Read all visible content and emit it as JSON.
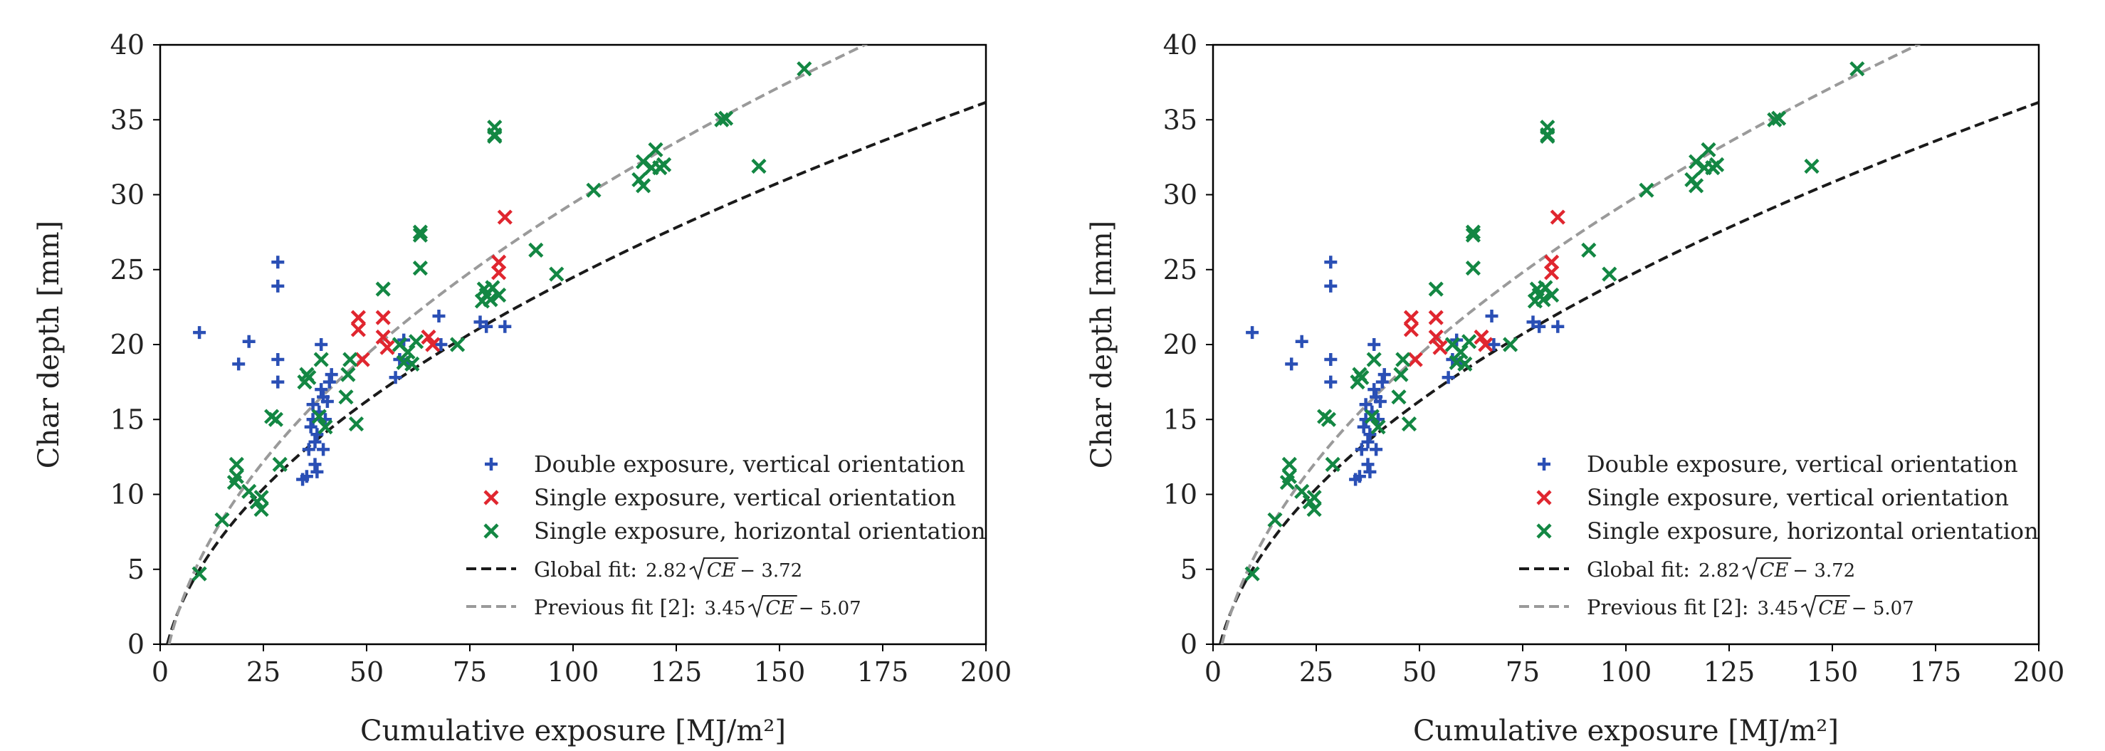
{
  "colors": {
    "double_vertical": "#2a4fb5",
    "single_vertical": "#e0262f",
    "single_horizontal": "#138743",
    "global_fit": "#1a1a1a",
    "previous_fit": "#9a9a9a",
    "axes": "#000000"
  },
  "chart_data": [
    {
      "type": "scatter",
      "xlabel": "Cumulative exposure [MJ/m²]",
      "ylabel": "Char depth [mm]",
      "xlim": [
        0,
        200
      ],
      "ylim": [
        0,
        40
      ],
      "xticks": [
        "0",
        "25",
        "50",
        "75",
        "100",
        "125",
        "150",
        "175",
        "200"
      ],
      "yticks": [
        "0",
        "5",
        "10",
        "15",
        "20",
        "25",
        "30",
        "35",
        "40"
      ],
      "legend_position": "lower-right",
      "grid": false,
      "series": [
        {
          "name": "Double exposure, vertical orientation",
          "marker": "plus",
          "color": "#2a4fb5",
          "points": [
            [
              9.5,
              20.8
            ],
            [
              19,
              18.7
            ],
            [
              21.5,
              20.2
            ],
            [
              28.5,
              25.5
            ],
            [
              28.5,
              23.9
            ],
            [
              28.5,
              19.0
            ],
            [
              28.5,
              17.5
            ],
            [
              34.5,
              11.0
            ],
            [
              35.5,
              11.2
            ],
            [
              36,
              13.0
            ],
            [
              36.5,
              14.5
            ],
            [
              37,
              15.0
            ],
            [
              37,
              16.0
            ],
            [
              37.5,
              12.0
            ],
            [
              37.5,
              13.5
            ],
            [
              38,
              14.0
            ],
            [
              38,
              11.5
            ],
            [
              38.5,
              15.5
            ],
            [
              39,
              17.0
            ],
            [
              39,
              20.0
            ],
            [
              39.5,
              16.5
            ],
            [
              39.5,
              13.0
            ],
            [
              40,
              15.0
            ],
            [
              40.5,
              16.2
            ],
            [
              41,
              17.5
            ],
            [
              41.5,
              18.0
            ],
            [
              57,
              17.8
            ],
            [
              58,
              19.0
            ],
            [
              59,
              20.3
            ],
            [
              60,
              18.8
            ],
            [
              67.5,
              21.9
            ],
            [
              68,
              20.0
            ],
            [
              77.5,
              21.5
            ],
            [
              79,
              21.2
            ],
            [
              83.5,
              21.2
            ]
          ]
        },
        {
          "name": "Single exposure, vertical orientation",
          "marker": "x",
          "color": "#e0262f",
          "points": [
            [
              48,
              21.8
            ],
            [
              48,
              21.0
            ],
            [
              54,
              21.8
            ],
            [
              54,
              20.5
            ],
            [
              55,
              19.8
            ],
            [
              65,
              20.5
            ],
            [
              66,
              20.0
            ],
            [
              82,
              25.5
            ],
            [
              82,
              24.8
            ],
            [
              83.5,
              28.5
            ],
            [
              49,
              19.0
            ]
          ]
        },
        {
          "name": "Single exposure, horizontal orientation",
          "marker": "x",
          "color": "#138743",
          "points": [
            [
              9.5,
              4.7
            ],
            [
              15,
              8.3
            ],
            [
              18,
              10.8
            ],
            [
              18.5,
              11.2
            ],
            [
              18.5,
              12.0
            ],
            [
              21.5,
              10.2
            ],
            [
              23.5,
              9.5
            ],
            [
              24.5,
              9.0
            ],
            [
              24.5,
              9.8
            ],
            [
              27,
              15.2
            ],
            [
              28,
              15.0
            ],
            [
              29,
              12.0
            ],
            [
              35,
              17.5
            ],
            [
              35.5,
              18.0
            ],
            [
              36,
              17.8
            ],
            [
              38.5,
              15.2
            ],
            [
              39,
              19.0
            ],
            [
              40,
              14.5
            ],
            [
              45,
              16.5
            ],
            [
              45.5,
              18.0
            ],
            [
              46,
              19.0
            ],
            [
              47.5,
              14.7
            ],
            [
              54,
              23.7
            ],
            [
              58,
              20.0
            ],
            [
              59,
              18.8
            ],
            [
              60,
              19.5
            ],
            [
              61,
              18.7
            ],
            [
              62,
              20.2
            ],
            [
              63,
              27.5
            ],
            [
              63,
              27.3
            ],
            [
              63,
              25.1
            ],
            [
              72,
              20.0
            ],
            [
              78,
              22.9
            ],
            [
              78.5,
              23.7
            ],
            [
              79,
              23.3
            ],
            [
              80,
              23.0
            ],
            [
              80.5,
              23.8
            ],
            [
              81,
              34.5
            ],
            [
              81,
              34.0
            ],
            [
              81,
              33.9
            ],
            [
              82,
              23.3
            ],
            [
              91,
              26.3
            ],
            [
              96,
              24.7
            ],
            [
              105,
              30.3
            ],
            [
              116,
              31.0
            ],
            [
              117,
              32.2
            ],
            [
              117,
              30.6
            ],
            [
              119,
              31.8
            ],
            [
              120,
              33.0
            ],
            [
              121,
              31.8
            ],
            [
              122,
              32.0
            ],
            [
              136,
              35.0
            ],
            [
              137,
              35.1
            ],
            [
              145,
              31.9
            ],
            [
              156,
              38.4
            ]
          ]
        }
      ],
      "fits": [
        {
          "name": "Global fit",
          "formula": "2.82√CE − 3.72",
          "a": 2.82,
          "b": 3.72,
          "color": "#1a1a1a"
        },
        {
          "name": "Previous fit [2]",
          "formula": "3.45√CE − 5.07",
          "a": 3.45,
          "b": 5.07,
          "color": "#9a9a9a"
        }
      ],
      "legend": {
        "entries": [
          "Double exposure, vertical orientation",
          "Single exposure, vertical orientation",
          "Single exposure, horizontal orientation",
          "Global fit:",
          "Previous fit [2]:"
        ],
        "formula_parts": [
          {
            "coef": "2.82",
            "var": "CE",
            "const": "− 3.72"
          },
          {
            "coef": "3.45",
            "var": "CE",
            "const": "− 5.07"
          }
        ]
      }
    },
    {
      "type": "scatter",
      "xlabel": "Cumulative exposure [MJ/m²]",
      "ylabel": "Char depth [mm]",
      "xlim": [
        0,
        200
      ],
      "ylim": [
        0,
        40
      ],
      "xticks": [
        "0",
        "25",
        "50",
        "75",
        "100",
        "125",
        "150",
        "175",
        "200"
      ],
      "yticks": [
        "0",
        "5",
        "10",
        "15",
        "20",
        "25",
        "30",
        "35",
        "40"
      ],
      "legend_position": "lower-right",
      "grid": false,
      "series": [
        {
          "name": "Double exposure, vertical orientation",
          "marker": "plus",
          "color": "#2a4fb5",
          "points": [
            [
              9.5,
              20.8
            ],
            [
              19,
              18.7
            ],
            [
              21.5,
              20.2
            ],
            [
              28.5,
              25.5
            ],
            [
              28.5,
              23.9
            ],
            [
              28.5,
              19.0
            ],
            [
              28.5,
              17.5
            ],
            [
              34.5,
              11.0
            ],
            [
              35.5,
              11.2
            ],
            [
              36,
              13.0
            ],
            [
              36.5,
              14.5
            ],
            [
              37,
              15.0
            ],
            [
              37,
              16.0
            ],
            [
              37.5,
              12.0
            ],
            [
              37.5,
              13.5
            ],
            [
              38,
              14.0
            ],
            [
              38,
              11.5
            ],
            [
              38.5,
              15.5
            ],
            [
              39,
              17.0
            ],
            [
              39,
              20.0
            ],
            [
              39.5,
              16.5
            ],
            [
              39.5,
              13.0
            ],
            [
              40,
              15.0
            ],
            [
              40.5,
              16.2
            ],
            [
              41,
              17.5
            ],
            [
              41.5,
              18.0
            ],
            [
              57,
              17.8
            ],
            [
              58,
              19.0
            ],
            [
              59,
              20.3
            ],
            [
              60,
              18.8
            ],
            [
              67.5,
              21.9
            ],
            [
              68,
              20.0
            ],
            [
              77.5,
              21.5
            ],
            [
              79,
              21.2
            ],
            [
              83.5,
              21.2
            ]
          ]
        },
        {
          "name": "Single exposure, vertical orientation",
          "marker": "x",
          "color": "#e0262f",
          "points": [
            [
              48,
              21.8
            ],
            [
              48,
              21.0
            ],
            [
              54,
              21.8
            ],
            [
              54,
              20.5
            ],
            [
              55,
              19.8
            ],
            [
              65,
              20.5
            ],
            [
              66,
              20.0
            ],
            [
              82,
              25.5
            ],
            [
              82,
              24.8
            ],
            [
              83.5,
              28.5
            ],
            [
              49,
              19.0
            ]
          ]
        },
        {
          "name": "Single exposure, horizontal orientation",
          "marker": "x",
          "color": "#138743",
          "points": [
            [
              9.5,
              4.7
            ],
            [
              15,
              8.3
            ],
            [
              18,
              10.8
            ],
            [
              18.5,
              11.2
            ],
            [
              18.5,
              12.0
            ],
            [
              21.5,
              10.2
            ],
            [
              23.5,
              9.5
            ],
            [
              24.5,
              9.0
            ],
            [
              24.5,
              9.8
            ],
            [
              27,
              15.2
            ],
            [
              28,
              15.0
            ],
            [
              29,
              12.0
            ],
            [
              35,
              17.5
            ],
            [
              35.5,
              18.0
            ],
            [
              36,
              17.8
            ],
            [
              38.5,
              15.2
            ],
            [
              39,
              19.0
            ],
            [
              40,
              14.5
            ],
            [
              45,
              16.5
            ],
            [
              45.5,
              18.0
            ],
            [
              46,
              19.0
            ],
            [
              47.5,
              14.7
            ],
            [
              54,
              23.7
            ],
            [
              58,
              20.0
            ],
            [
              59,
              18.8
            ],
            [
              60,
              19.5
            ],
            [
              61,
              18.7
            ],
            [
              62,
              20.2
            ],
            [
              63,
              27.5
            ],
            [
              63,
              27.3
            ],
            [
              63,
              25.1
            ],
            [
              72,
              20.0
            ],
            [
              78,
              22.9
            ],
            [
              78.5,
              23.7
            ],
            [
              79,
              23.3
            ],
            [
              80,
              23.0
            ],
            [
              80.5,
              23.8
            ],
            [
              81,
              34.5
            ],
            [
              81,
              34.0
            ],
            [
              81,
              33.9
            ],
            [
              82,
              23.3
            ],
            [
              91,
              26.3
            ],
            [
              96,
              24.7
            ],
            [
              105,
              30.3
            ],
            [
              116,
              31.0
            ],
            [
              117,
              32.2
            ],
            [
              117,
              30.6
            ],
            [
              119,
              31.8
            ],
            [
              120,
              33.0
            ],
            [
              121,
              31.8
            ],
            [
              122,
              32.0
            ],
            [
              136,
              35.0
            ],
            [
              137,
              35.1
            ],
            [
              145,
              31.9
            ],
            [
              156,
              38.4
            ]
          ]
        }
      ],
      "fits": [
        {
          "name": "Global fit",
          "formula": "2.82√CE − 3.72",
          "a": 2.82,
          "b": 3.72,
          "color": "#1a1a1a"
        },
        {
          "name": "Previous fit [2]",
          "formula": "3.45√CE − 5.07",
          "a": 3.45,
          "b": 5.07,
          "color": "#9a9a9a"
        }
      ],
      "legend": {
        "entries": [
          "Double exposure, vertical orientation",
          "Single exposure, vertical orientation",
          "Single exposure, horizontal orientation",
          "Global fit:",
          "Previous fit [2]:"
        ],
        "formula_parts": [
          {
            "coef": "2.82",
            "var": "CE",
            "const": "− 3.72"
          },
          {
            "coef": "3.45",
            "var": "CE",
            "const": "− 5.07"
          }
        ]
      }
    }
  ]
}
